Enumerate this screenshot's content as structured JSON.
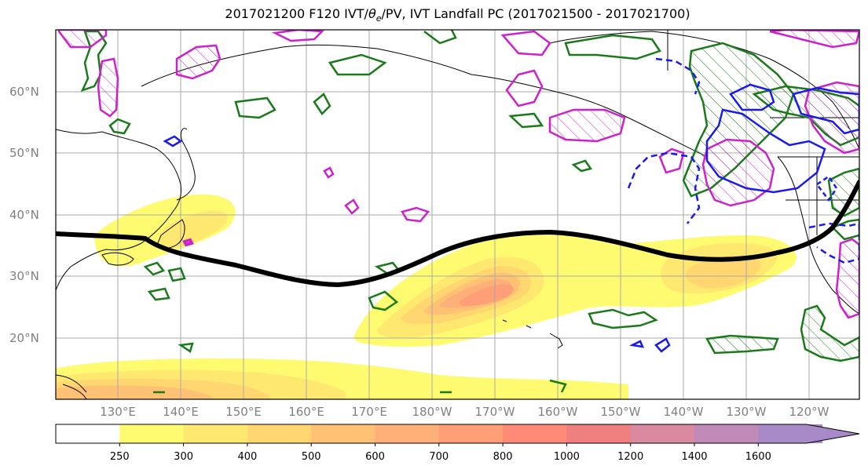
{
  "title": "2017021200 F120 IVT/",
  "title_theta": "θ",
  "title_sub": "e",
  "title_rest": "/PV, IVT Landfall PC (2017021500 - 2017021700)",
  "lat_labels": [
    "60°N",
    "50°N",
    "40°N",
    "30°N",
    "20°N"
  ],
  "lon_labels": [
    "130°E",
    "140°E",
    "150°E",
    "160°E",
    "170°E",
    "180°W",
    "170°W",
    "160°W",
    "150°W",
    "140°W",
    "130°W",
    "120°W"
  ],
  "colorbar": {
    "ticks": [
      "250",
      "300",
      "400",
      "500",
      "600",
      "700",
      "800",
      "1000",
      "1200",
      "1400",
      "1600"
    ],
    "colors": [
      "#ffffff",
      "#fffb70",
      "#ffe870",
      "#ffd670",
      "#ffc173",
      "#ffb078",
      "#ff9f78",
      "#ff8a78",
      "#f08080",
      "#d98aa0",
      "#c08ab8",
      "#a98ac8"
    ]
  },
  "legend_colors": {
    "ivt_landfall_line": "#000000",
    "green_contour": "#1a7a1a",
    "magenta_contour": "#cc22cc",
    "blue_contour": "#1a1aee"
  }
}
